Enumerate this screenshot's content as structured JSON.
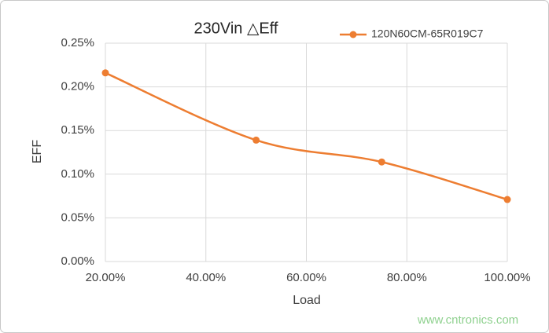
{
  "chart_data": {
    "type": "line",
    "title": "230Vin △Eff",
    "x": [
      20,
      50,
      75,
      100
    ],
    "series": [
      {
        "name": "120N60CM-65R019C7",
        "color": "#ed7d31",
        "values": [
          0.216,
          0.139,
          0.114,
          0.071
        ]
      }
    ],
    "xlabel": "Load",
    "ylabel": "EFF",
    "xlim": [
      20,
      100
    ],
    "xticks": [
      {
        "value": 20,
        "label": "20.00%"
      },
      {
        "value": 40,
        "label": "40.00%"
      },
      {
        "value": 60,
        "label": "60.00%"
      },
      {
        "value": 80,
        "label": "80.00%"
      },
      {
        "value": 100,
        "label": "100.00%"
      }
    ],
    "ylim": [
      0,
      0.25
    ],
    "yticks": [
      {
        "value": 0,
        "label": "0.00%"
      },
      {
        "value": 0.05,
        "label": "0.05%"
      },
      {
        "value": 0.1,
        "label": "0.10%"
      },
      {
        "value": 0.15,
        "label": "0.15%"
      },
      {
        "value": 0.2,
        "label": "0.20%"
      },
      {
        "value": 0.25,
        "label": "0.25%"
      }
    ],
    "grid": true,
    "smooth": true,
    "legend": "top-right"
  },
  "watermark": "www.cntronics.com"
}
